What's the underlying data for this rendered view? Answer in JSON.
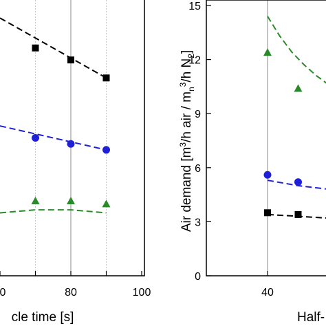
{
  "chart_data": [
    {
      "type": "scatter",
      "xlabel": "cle time [s]",
      "ylabel": "",
      "xlim": [
        60,
        100
      ],
      "x_ticks": [
        "0",
        "80",
        "100"
      ],
      "grid": "x",
      "series": [
        {
          "marker": "square",
          "color": "#000000",
          "x": [
            70,
            80,
            90
          ],
          "y": [
            3.8,
            3.6,
            3.3
          ]
        },
        {
          "marker": "circle",
          "color": "#1f1fd6",
          "x": [
            70,
            80,
            90
          ],
          "y": [
            2.3,
            2.2,
            2.1
          ]
        },
        {
          "marker": "triangle",
          "color": "#2a8a2a",
          "x": [
            70,
            80,
            90
          ],
          "y": [
            1.25,
            1.25,
            1.2
          ]
        }
      ],
      "fits": [
        {
          "color": "#000000",
          "x": [
            60,
            90
          ],
          "y": [
            4.3,
            3.3
          ]
        },
        {
          "color": "#1f1fd6",
          "x": [
            60,
            90
          ],
          "y": [
            2.5,
            2.1
          ]
        },
        {
          "color": "#2a8a2a",
          "x": [
            60,
            70,
            80,
            90
          ],
          "y": [
            1.05,
            1.1,
            1.1,
            1.05
          ]
        }
      ]
    },
    {
      "type": "scatter",
      "xlabel": "Half-",
      "ylabel_parts": {
        "a": "Air demand [m",
        "a_sup": "3",
        "b": "/h air / m",
        "b_sub": "n",
        "b_sup": "3",
        "c": "/h N",
        "c_sub": "2",
        "d": "]"
      },
      "xlim": [
        30,
        60
      ],
      "ylim": [
        0,
        15
      ],
      "x_ticks": [
        "40"
      ],
      "y_ticks": [
        "0",
        "3",
        "6",
        "9",
        "12",
        "15"
      ],
      "series": [
        {
          "marker": "square",
          "color": "#000000",
          "x": [
            40,
            45
          ],
          "y": [
            3.5,
            3.4
          ]
        },
        {
          "marker": "circle",
          "color": "#1f1fd6",
          "x": [
            40,
            45
          ],
          "y": [
            5.6,
            5.2
          ]
        },
        {
          "marker": "triangle",
          "color": "#2a8a2a",
          "x": [
            40,
            45
          ],
          "y": [
            12.4,
            10.4
          ]
        }
      ],
      "fits": [
        {
          "color": "#000000",
          "x": [
            40,
            45,
            50,
            55,
            60
          ],
          "y": [
            3.4,
            3.3,
            3.2,
            3.15,
            3.1
          ]
        },
        {
          "color": "#1f1fd6",
          "x": [
            40,
            45,
            50,
            55,
            60
          ],
          "y": [
            5.3,
            5.0,
            4.8,
            4.65,
            4.55
          ]
        },
        {
          "color": "#2a8a2a",
          "x": [
            40,
            42,
            44,
            46,
            48,
            50,
            52,
            55,
            58,
            60
          ],
          "y": [
            14.4,
            13.3,
            12.4,
            11.7,
            11.1,
            10.6,
            10.2,
            9.7,
            9.3,
            9.0
          ]
        }
      ]
    }
  ]
}
